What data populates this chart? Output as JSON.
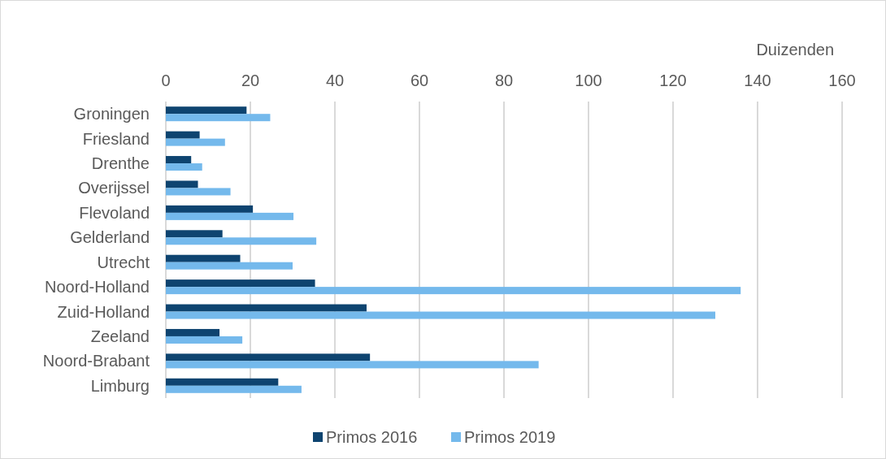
{
  "chart_data": {
    "type": "bar",
    "orientation": "horizontal",
    "xlabel": "Duizenden",
    "categories": [
      "Groningen",
      "Friesland",
      "Drenthe",
      "Overijssel",
      "Flevoland",
      "Gelderland",
      "Utrecht",
      "Noord-Holland",
      "Zuid-Holland",
      "Zeeland",
      "Noord-Brabant",
      "Limburg"
    ],
    "series": [
      {
        "name": "Primos 2016",
        "color": "#0e4470",
        "values": [
          19.1,
          8.0,
          6.0,
          7.6,
          20.6,
          13.4,
          17.6,
          35.3,
          47.5,
          12.7,
          48.3,
          26.6
        ]
      },
      {
        "name": "Primos 2019",
        "color": "#74b9ec",
        "values": [
          24.7,
          14.0,
          8.6,
          15.3,
          30.2,
          35.6,
          30.0,
          136,
          130,
          18.1,
          88.2,
          32.1
        ]
      }
    ],
    "xlim": [
      0,
      160
    ],
    "xticks": [
      0,
      20,
      40,
      60,
      80,
      100,
      120,
      140,
      160
    ],
    "grid": "x",
    "legend": "bottom"
  }
}
